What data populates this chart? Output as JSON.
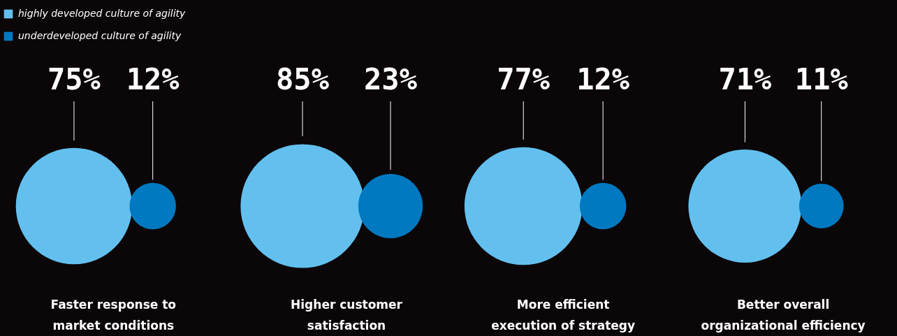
{
  "chart_data": {
    "type": "other",
    "categories": [
      "Faster response to\nmarket conditions",
      "Higher customer\nsatisfaction",
      "More efficient\nexecution of strategy",
      "Better overall\norganizational efficiency"
    ],
    "series": [
      {
        "name": "highly developed culture of agility",
        "color": "#63c0ee",
        "values": [
          75,
          85,
          77,
          71
        ],
        "value_labels": [
          "75%",
          "85%",
          "77%",
          "71%"
        ]
      },
      {
        "name": "underdeveloped culture of agility",
        "color": "#0079c1",
        "values": [
          12,
          23,
          12,
          11
        ],
        "value_labels": [
          "12%",
          "23%",
          "12%",
          "11%"
        ]
      }
    ],
    "legend": "top left"
  }
}
